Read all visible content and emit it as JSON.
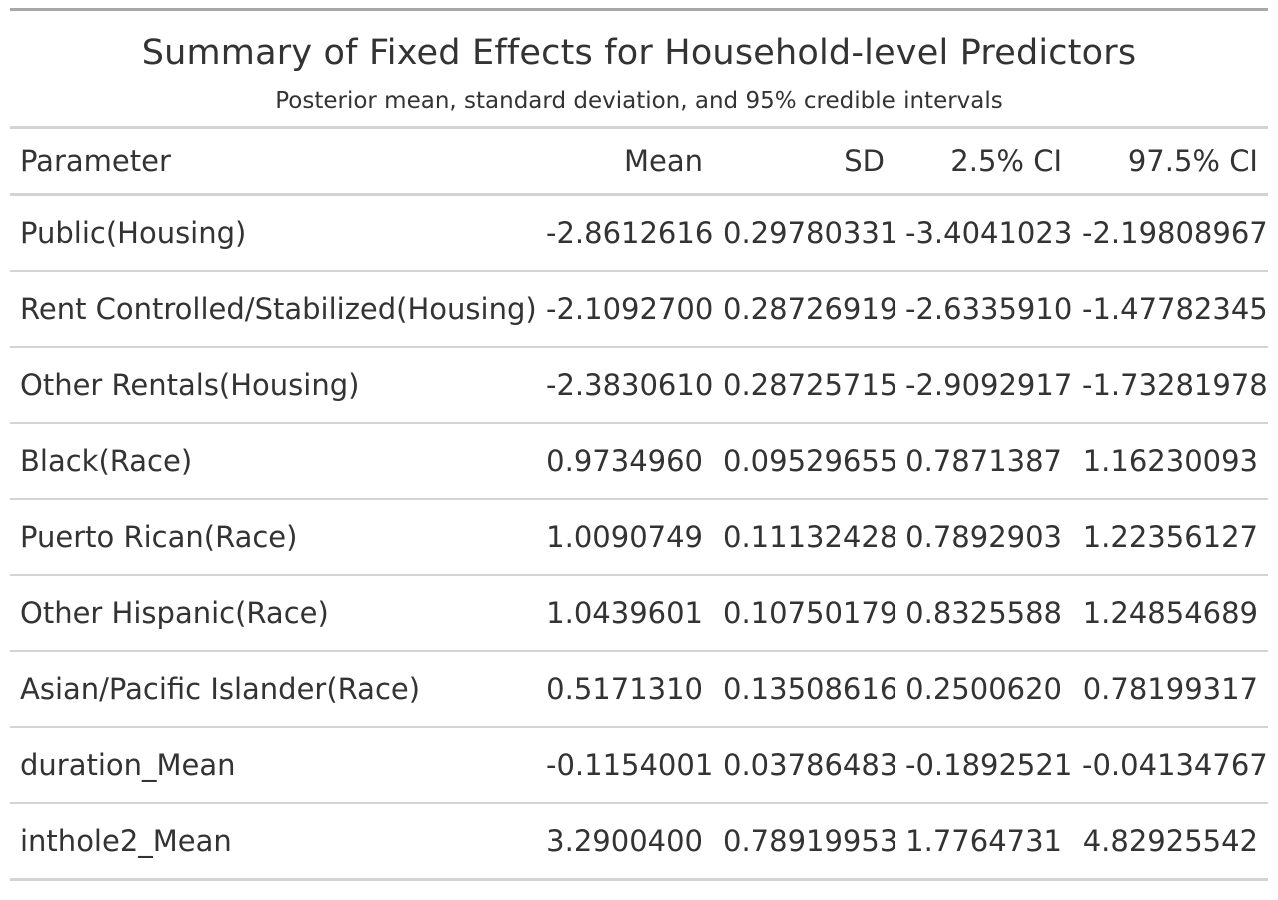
{
  "title": "Summary of Fixed Effects for Household-level Predictors",
  "subtitle": "Posterior mean, standard deviation, and 95% credible intervals",
  "columns": [
    "Parameter",
    "Mean",
    "SD",
    "2.5% CI",
    "97.5% CI"
  ],
  "rows": [
    [
      "Public(Housing)",
      "-2.8612616",
      "0.29780331",
      "-3.4041023",
      "-2.19808967"
    ],
    [
      "Rent Controlled/Stabilized(Housing)",
      "-2.1092700",
      "0.28726919",
      "-2.6335910",
      "-1.47782345"
    ],
    [
      "Other Rentals(Housing)",
      "-2.3830610",
      "0.28725715",
      "-2.9092917",
      "-1.73281978"
    ],
    [
      "Black(Race)",
      "0.9734960",
      "0.09529655",
      "0.7871387",
      "1.16230093"
    ],
    [
      "Puerto Rican(Race)",
      "1.0090749",
      "0.11132428",
      "0.7892903",
      "1.22356127"
    ],
    [
      "Other Hispanic(Race)",
      "1.0439601",
      "0.10750179",
      "0.8325588",
      "1.24854689"
    ],
    [
      "Asian/Pacific Islander(Race)",
      "0.5171310",
      "0.13508616",
      "0.2500620",
      "0.78199317"
    ],
    [
      "duration_Mean",
      "-0.1154001",
      "0.03786483",
      "-0.1892521",
      "-0.04134767"
    ],
    [
      "inthole2_Mean",
      "3.2900400",
      "0.78919953",
      "1.7764731",
      "4.82925542"
    ]
  ],
  "chart_data": {
    "type": "table",
    "title": "Summary of Fixed Effects for Household-level Predictors",
    "subtitle": "Posterior mean, standard deviation, and 95% credible intervals",
    "columns": [
      "Parameter",
      "Mean",
      "SD",
      "2.5% CI",
      "97.5% CI"
    ],
    "rows": [
      [
        "Public(Housing)",
        -2.8612616,
        0.29780331,
        -3.4041023,
        -2.19808967
      ],
      [
        "Rent Controlled/Stabilized(Housing)",
        -2.10927,
        0.28726919,
        -2.633591,
        -1.47782345
      ],
      [
        "Other Rentals(Housing)",
        -2.383061,
        0.28725715,
        -2.9092917,
        -1.73281978
      ],
      [
        "Black(Race)",
        0.973496,
        0.09529655,
        0.7871387,
        1.16230093
      ],
      [
        "Puerto Rican(Race)",
        1.0090749,
        0.11132428,
        0.7892903,
        1.22356127
      ],
      [
        "Other Hispanic(Race)",
        1.0439601,
        0.10750179,
        0.8325588,
        1.24854689
      ],
      [
        "Asian/Pacific Islander(Race)",
        0.517131,
        0.13508616,
        0.250062,
        0.78199317
      ],
      [
        "duration_Mean",
        -0.1154001,
        0.03786483,
        -0.1892521,
        -0.04134767
      ],
      [
        "inthole2_Mean",
        3.29004,
        0.78919953,
        1.7764731,
        4.82925542
      ]
    ]
  }
}
